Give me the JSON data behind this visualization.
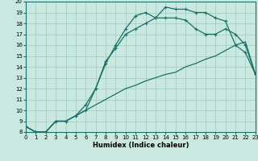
{
  "xlabel": "Humidex (Indice chaleur)",
  "xlim": [
    0,
    23
  ],
  "ylim": [
    8,
    20
  ],
  "xticks": [
    0,
    1,
    2,
    3,
    4,
    5,
    6,
    7,
    8,
    9,
    10,
    11,
    12,
    13,
    14,
    15,
    16,
    17,
    18,
    19,
    20,
    21,
    22,
    23
  ],
  "yticks": [
    8,
    9,
    10,
    11,
    12,
    13,
    14,
    15,
    16,
    17,
    18,
    19,
    20
  ],
  "bg_color": "#c8e8e0",
  "grid_color": "#a0c8c0",
  "line_color": "#1a7068",
  "curves": [
    {
      "x": [
        0,
        1,
        2,
        3,
        4,
        5,
        6,
        7,
        8,
        9,
        10,
        11,
        12,
        13,
        14,
        15,
        16,
        17,
        18,
        19,
        20,
        21,
        22,
        23
      ],
      "y": [
        8.5,
        8.0,
        8.0,
        9.0,
        9.0,
        9.5,
        10.0,
        10.5,
        11.0,
        11.5,
        12.0,
        12.3,
        12.7,
        13.0,
        13.3,
        13.5,
        14.0,
        14.3,
        14.7,
        15.0,
        15.5,
        16.0,
        16.3,
        13.3
      ],
      "marker": false,
      "lw": 0.9
    },
    {
      "x": [
        0,
        1,
        2,
        3,
        4,
        5,
        6,
        7,
        8,
        9,
        10,
        11,
        12,
        13,
        14,
        15,
        16,
        17,
        18,
        19,
        20,
        21,
        22,
        23
      ],
      "y": [
        8.5,
        8.0,
        8.0,
        9.0,
        9.0,
        9.5,
        10.5,
        12.0,
        14.5,
        15.7,
        17.0,
        17.5,
        18.0,
        18.5,
        19.5,
        19.3,
        19.3,
        19.0,
        19.0,
        18.5,
        18.2,
        16.0,
        15.3,
        13.3
      ],
      "marker": true,
      "lw": 0.9
    },
    {
      "x": [
        0,
        1,
        2,
        3,
        4,
        5,
        6,
        7,
        8,
        9,
        10,
        11,
        12,
        13,
        14,
        15,
        16,
        17,
        18,
        19,
        20,
        21,
        22,
        23
      ],
      "y": [
        8.5,
        8.0,
        8.0,
        9.0,
        9.0,
        9.5,
        10.0,
        12.0,
        14.3,
        16.0,
        17.5,
        18.7,
        19.0,
        18.5,
        18.5,
        18.5,
        18.3,
        17.5,
        17.0,
        17.0,
        17.5,
        17.0,
        16.0,
        13.3
      ],
      "marker": true,
      "lw": 0.9
    }
  ]
}
